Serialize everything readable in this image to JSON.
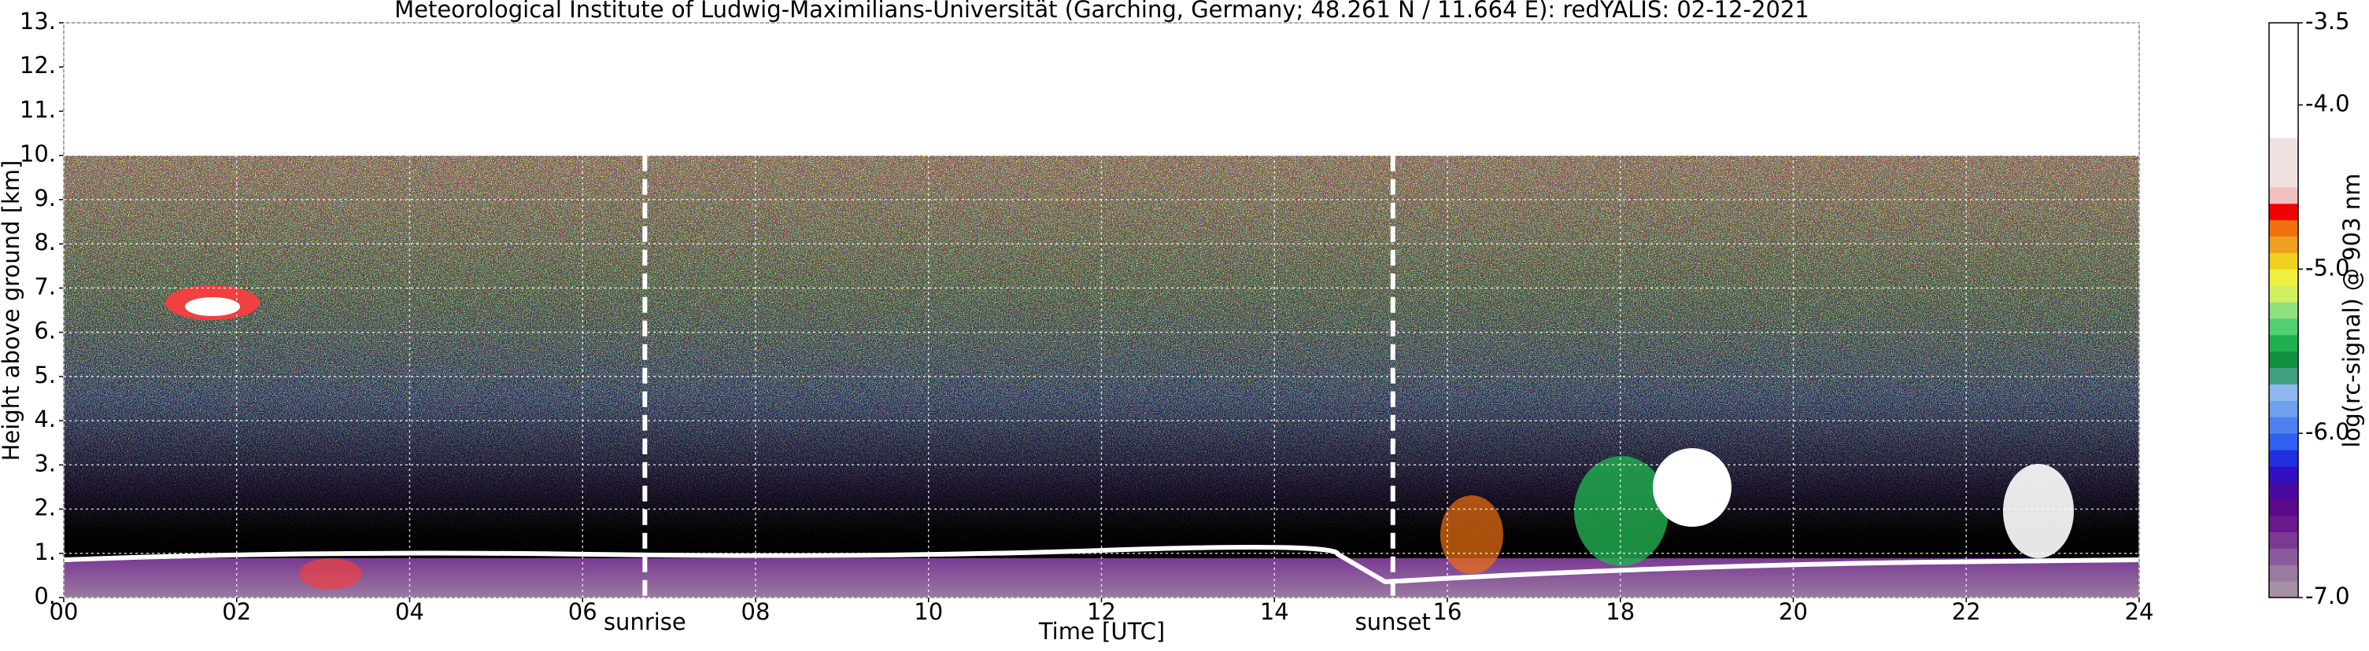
{
  "chart_data": {
    "type": "heatmap",
    "title": "Meteorological Institute of Ludwig-Maximilians-Universität (Garching, Germany; 48.261 N / 11.664 E):    redYALIS: 02-12-2021",
    "xlabel": "Time [UTC]",
    "ylabel": "Height above ground [km]",
    "xlim": [
      0,
      24
    ],
    "xticks": [
      {
        "value": 0,
        "label": "00"
      },
      {
        "value": 2,
        "label": "02"
      },
      {
        "value": 4,
        "label": "04"
      },
      {
        "value": 6,
        "label": "06"
      },
      {
        "value": 8,
        "label": "08"
      },
      10,
      12,
      14,
      16,
      18,
      20,
      22,
      24
    ],
    "ylim": [
      0,
      13
    ],
    "yticks": [
      {
        "value": 0,
        "label": "0."
      },
      {
        "value": 1,
        "label": "1."
      },
      {
        "value": 2,
        "label": "2."
      },
      {
        "value": 3,
        "label": "3."
      },
      {
        "value": 4,
        "label": "4."
      },
      {
        "value": 5,
        "label": "5."
      },
      {
        "value": 6,
        "label": "6."
      },
      {
        "value": 7,
        "label": "7."
      },
      {
        "value": 8,
        "label": "8."
      },
      {
        "value": 9,
        "label": "9."
      },
      {
        "value": 10,
        "label": "10."
      },
      {
        "value": 11,
        "label": "11."
      },
      {
        "value": 12,
        "label": "12."
      },
      {
        "value": 13,
        "label": "13."
      }
    ],
    "grid": true,
    "colorbar": {
      "label": "log(rc-signal) @ 903 nm",
      "lim": [
        -7,
        -3.5
      ],
      "ticks": [
        {
          "value": -3.5,
          "label": "-3.5"
        },
        {
          "value": -4,
          "label": "-4.0"
        },
        {
          "value": -5,
          "label": "-5.0"
        },
        {
          "value": -6,
          "label": "-6.0"
        },
        {
          "value": -7,
          "label": "-7.0"
        }
      ],
      "colors": [
        "#a590a5",
        "#9a7aa0",
        "#8a5a9a",
        "#7a3a94",
        "#6a1a8e",
        "#5a0a8a",
        "#4a0aa0",
        "#3010c0",
        "#2030e0",
        "#3060f0",
        "#5080f0",
        "#70a0f0",
        "#90b8f0",
        "#40a080",
        "#109040",
        "#20b050",
        "#50d070",
        "#90e080",
        "#d0f060",
        "#f0f040",
        "#f0d020",
        "#f0a020",
        "#f07010",
        "#f00000",
        "#f0c0c0",
        "#f0e0e0",
        "#f0e0e0",
        "#f0e0e0",
        "#ffffff",
        "#ffffff",
        "#ffffff",
        "#ffffff",
        "#ffffff",
        "#ffffff",
        "#ffffff"
      ]
    },
    "annotations": [
      {
        "text": "sunrise",
        "x": 6.72
      },
      {
        "text": "sunset",
        "x": 15.37
      }
    ]
  }
}
